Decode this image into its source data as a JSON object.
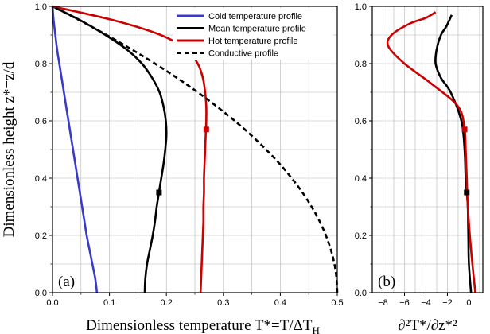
{
  "chart_data": [
    {
      "type": "line",
      "panel_label": "(a)",
      "xlabel": "Dimensionless temperature T*=T/ΔT",
      "xlabel_sub": "H",
      "ylabel": "Dimensionless height z*=z/d",
      "xlim": [
        0,
        0.5
      ],
      "ylim": [
        0,
        1
      ],
      "xticks": [
        "0.0",
        "0.1",
        "0.2",
        "0.3",
        "0.4",
        "0.5"
      ],
      "yticks": [
        "0.0",
        "0.2",
        "0.4",
        "0.6",
        "0.8",
        "1.0"
      ],
      "grid": true,
      "legend_position": "top-right",
      "series": [
        {
          "name": "Cold temperature profile",
          "color": "#3a3ac8",
          "dash": "solid",
          "points": [
            [
              0.078,
              0.0
            ],
            [
              0.075,
              0.05
            ],
            [
              0.07,
              0.1
            ],
            [
              0.065,
              0.15
            ],
            [
              0.06,
              0.2
            ],
            [
              0.056,
              0.25
            ],
            [
              0.052,
              0.3
            ],
            [
              0.048,
              0.35
            ],
            [
              0.044,
              0.4
            ],
            [
              0.04,
              0.45
            ],
            [
              0.036,
              0.5
            ],
            [
              0.032,
              0.55
            ],
            [
              0.028,
              0.6
            ],
            [
              0.024,
              0.65
            ],
            [
              0.02,
              0.7
            ],
            [
              0.016,
              0.75
            ],
            [
              0.012,
              0.8
            ],
            [
              0.008,
              0.85
            ],
            [
              0.005,
              0.9
            ],
            [
              0.002,
              0.95
            ],
            [
              0.0,
              1.0
            ]
          ]
        },
        {
          "name": "Mean temperature profile",
          "color": "#000000",
          "dash": "solid",
          "points": [
            [
              0.162,
              0.0
            ],
            [
              0.163,
              0.05
            ],
            [
              0.166,
              0.1
            ],
            [
              0.171,
              0.15
            ],
            [
              0.176,
              0.2
            ],
            [
              0.18,
              0.25
            ],
            [
              0.183,
              0.3
            ],
            [
              0.187,
              0.35
            ],
            [
              0.191,
              0.4
            ],
            [
              0.195,
              0.45
            ],
            [
              0.198,
              0.5
            ],
            [
              0.2,
              0.55
            ],
            [
              0.199,
              0.6
            ],
            [
              0.195,
              0.65
            ],
            [
              0.188,
              0.7
            ],
            [
              0.175,
              0.75
            ],
            [
              0.157,
              0.8
            ],
            [
              0.13,
              0.85
            ],
            [
              0.093,
              0.9
            ],
            [
              0.05,
              0.95
            ],
            [
              0.0,
              1.0
            ]
          ]
        },
        {
          "name": "Hot temperature profile",
          "color": "#cc0000",
          "dash": "solid",
          "points": [
            [
              0.26,
              0.0
            ],
            [
              0.261,
              0.05
            ],
            [
              0.262,
              0.1
            ],
            [
              0.263,
              0.15
            ],
            [
              0.264,
              0.2
            ],
            [
              0.265,
              0.25
            ],
            [
              0.265,
              0.3
            ],
            [
              0.266,
              0.35
            ],
            [
              0.266,
              0.4
            ],
            [
              0.267,
              0.45
            ],
            [
              0.268,
              0.5
            ],
            [
              0.269,
              0.55
            ],
            [
              0.27,
              0.6
            ],
            [
              0.27,
              0.65
            ],
            [
              0.268,
              0.7
            ],
            [
              0.264,
              0.75
            ],
            [
              0.255,
              0.8
            ],
            [
              0.235,
              0.85
            ],
            [
              0.19,
              0.9
            ],
            [
              0.11,
              0.95
            ],
            [
              0.0,
              1.0
            ]
          ]
        },
        {
          "name": "Conductive profile",
          "color": "#000000",
          "dash": "dashed",
          "points": [
            [
              0.5,
              0.0
            ],
            [
              0.4987,
              0.05
            ],
            [
              0.495,
              0.1
            ],
            [
              0.4887,
              0.15
            ],
            [
              0.48,
              0.2
            ],
            [
              0.4688,
              0.25
            ],
            [
              0.455,
              0.3
            ],
            [
              0.4388,
              0.35
            ],
            [
              0.42,
              0.4
            ],
            [
              0.3988,
              0.45
            ],
            [
              0.375,
              0.5
            ],
            [
              0.3488,
              0.55
            ],
            [
              0.32,
              0.6
            ],
            [
              0.2887,
              0.65
            ],
            [
              0.255,
              0.7
            ],
            [
              0.2188,
              0.75
            ],
            [
              0.18,
              0.8
            ],
            [
              0.1387,
              0.85
            ],
            [
              0.095,
              0.9
            ],
            [
              0.0488,
              0.95
            ],
            [
              0.0,
              1.0
            ]
          ]
        }
      ],
      "markers": [
        {
          "x": 0.187,
          "y": 0.35,
          "color": "#000000"
        },
        {
          "x": 0.27,
          "y": 0.57,
          "color": "#cc0000"
        }
      ]
    },
    {
      "type": "line",
      "panel_label": "(b)",
      "xlabel": "∂²T*/∂z*²",
      "xlim": [
        -9,
        1.3
      ],
      "ylim": [
        0,
        1
      ],
      "xticks": [
        "−8",
        "−6",
        "−4",
        "−2",
        "0"
      ],
      "xtick_values": [
        -8,
        -6,
        -4,
        -2,
        0
      ],
      "yticks": [
        "0.0",
        "0.2",
        "0.4",
        "0.6",
        "0.8",
        "1.0"
      ],
      "grid": true,
      "series": [
        {
          "color": "#000000",
          "dash": "solid",
          "points": [
            [
              0.2,
              0.0
            ],
            [
              0.0,
              0.1
            ],
            [
              -0.05,
              0.2
            ],
            [
              -0.1,
              0.3
            ],
            [
              -0.2,
              0.35
            ],
            [
              -0.3,
              0.4
            ],
            [
              -0.4,
              0.5
            ],
            [
              -0.7,
              0.6
            ],
            [
              -1.7,
              0.7
            ],
            [
              -2.6,
              0.75
            ],
            [
              -3.1,
              0.8
            ],
            [
              -3.0,
              0.85
            ],
            [
              -2.6,
              0.9
            ],
            [
              -2.1,
              0.93
            ],
            [
              -1.6,
              0.97
            ]
          ]
        },
        {
          "color": "#cc0000",
          "dash": "solid",
          "points": [
            [
              0.6,
              0.0
            ],
            [
              0.2,
              0.15
            ],
            [
              -0.1,
              0.3
            ],
            [
              -0.2,
              0.4
            ],
            [
              -0.3,
              0.5
            ],
            [
              -0.4,
              0.57
            ],
            [
              -1.0,
              0.65
            ],
            [
              -3.5,
              0.73
            ],
            [
              -6.0,
              0.8
            ],
            [
              -7.5,
              0.86
            ],
            [
              -7.2,
              0.9
            ],
            [
              -5.5,
              0.94
            ],
            [
              -4.0,
              0.96
            ],
            [
              -3.1,
              0.98
            ]
          ]
        }
      ],
      "markers": [
        {
          "x": -0.2,
          "y": 0.35,
          "color": "#000000"
        },
        {
          "x": -0.4,
          "y": 0.57,
          "color": "#cc0000"
        }
      ]
    }
  ]
}
